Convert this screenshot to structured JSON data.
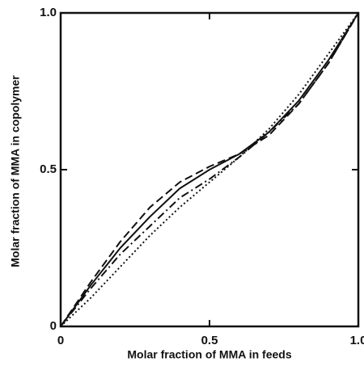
{
  "chart_data": {
    "type": "line",
    "xlabel": "Molar fraction of MMA in feeds",
    "ylabel": "Molar fraction of MMA in copolymer",
    "x": [
      0,
      0.1,
      0.2,
      0.3,
      0.4,
      0.5,
      0.6,
      0.7,
      0.8,
      0.9,
      1.0
    ],
    "series": [
      {
        "color": "#111111",
        "dash": "solid",
        "values": [
          0,
          0.13,
          0.25,
          0.35,
          0.44,
          0.5,
          0.55,
          0.62,
          0.72,
          0.85,
          1.0
        ]
      },
      {
        "color": "#111111",
        "dash": "dashed",
        "values": [
          0,
          0.14,
          0.27,
          0.38,
          0.46,
          0.51,
          0.55,
          0.61,
          0.71,
          0.84,
          1.0
        ]
      },
      {
        "color": "#111111",
        "dash": "dashdot",
        "values": [
          0,
          0.12,
          0.23,
          0.32,
          0.41,
          0.47,
          0.54,
          0.62,
          0.71,
          0.84,
          1.0
        ]
      },
      {
        "color": "#111111",
        "dash": "dotted",
        "values": [
          0,
          0.09,
          0.19,
          0.29,
          0.38,
          0.46,
          0.54,
          0.63,
          0.74,
          0.87,
          1.0
        ]
      }
    ],
    "xlim": [
      0,
      1.0
    ],
    "ylim": [
      0,
      1.0
    ],
    "xticks": [
      0,
      0.5,
      {
        "value": 1.0,
        "label": "1.0"
      }
    ],
    "yticks": [
      0,
      0.5,
      {
        "value": 1.0,
        "label": "1.0"
      }
    ],
    "grid": false
  }
}
